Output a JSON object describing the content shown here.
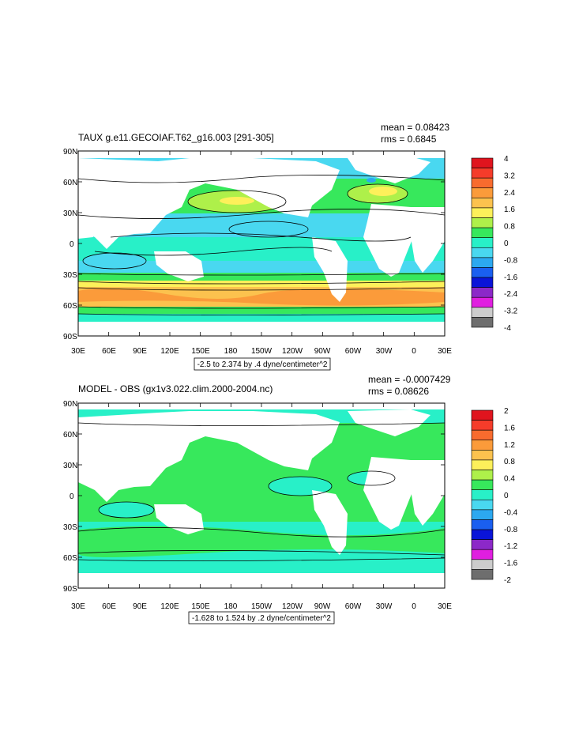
{
  "panels": [
    {
      "title": "TAUX g.e11.GECOIAF.T62_g16.003 [291-305]",
      "mean": "mean = 0.08423",
      "rms": "rms = 0.6845",
      "range_note": "-2.5 to 2.374 by .4 dyne/centimeter^2",
      "lat_labels": [
        "90N",
        "60N",
        "30N",
        "0",
        "30S",
        "60S",
        "90S"
      ],
      "lon_labels": [
        "30E",
        "60E",
        "90E",
        "120E",
        "150E",
        "180",
        "150W",
        "120W",
        "90W",
        "60W",
        "30W",
        "0",
        "30E"
      ],
      "colorbar_labels": [
        "4",
        "3.2",
        "2.4",
        "1.6",
        "0.8",
        "0",
        "-0.8",
        "-1.6",
        "-2.4",
        "-3.2",
        "-4"
      ],
      "colorbar_colors": [
        "#e0141e",
        "#f53c2a",
        "#f86b2e",
        "#fb9b3a",
        "#fcc24e",
        "#fdf05a",
        "#aef04a",
        "#37e85c",
        "#28f0c8",
        "#49d8f0",
        "#2ca8f0",
        "#1a5ff0",
        "#0a14d8",
        "#8c28c8",
        "#e01ee0",
        "#cccccc",
        "#6e6e6e"
      ]
    },
    {
      "title": "MODEL - OBS (gx1v3.022.clim.2000-2004.nc)",
      "mean": "mean = -0.0007429",
      "rms": "rms = 0.08626",
      "range_note": "-1.628 to 1.524 by .2 dyne/centimeter^2",
      "lat_labels": [
        "90N",
        "60N",
        "30N",
        "0",
        "30S",
        "60S",
        "90S"
      ],
      "lon_labels": [
        "30E",
        "60E",
        "90E",
        "120E",
        "150E",
        "180",
        "150W",
        "120W",
        "90W",
        "60W",
        "30W",
        "0",
        "30E"
      ],
      "colorbar_labels": [
        "2",
        "1.6",
        "1.2",
        "0.8",
        "0.4",
        "0",
        "-0.4",
        "-0.8",
        "-1.2",
        "-1.6",
        "-2"
      ],
      "colorbar_colors": [
        "#e0141e",
        "#f53c2a",
        "#f86b2e",
        "#fb9b3a",
        "#fcc24e",
        "#fdf05a",
        "#aef04a",
        "#37e85c",
        "#28f0c8",
        "#49d8f0",
        "#2ca8f0",
        "#1a5ff0",
        "#0a14d8",
        "#8c28c8",
        "#e01ee0",
        "#cccccc",
        "#6e6e6e"
      ]
    }
  ],
  "colors": {
    "ocean_low": "#28f0c8",
    "ocean_mid": "#49d8f0",
    "positive": "#37e85c",
    "strong": "#fcc24e",
    "land": "#ffffff"
  }
}
